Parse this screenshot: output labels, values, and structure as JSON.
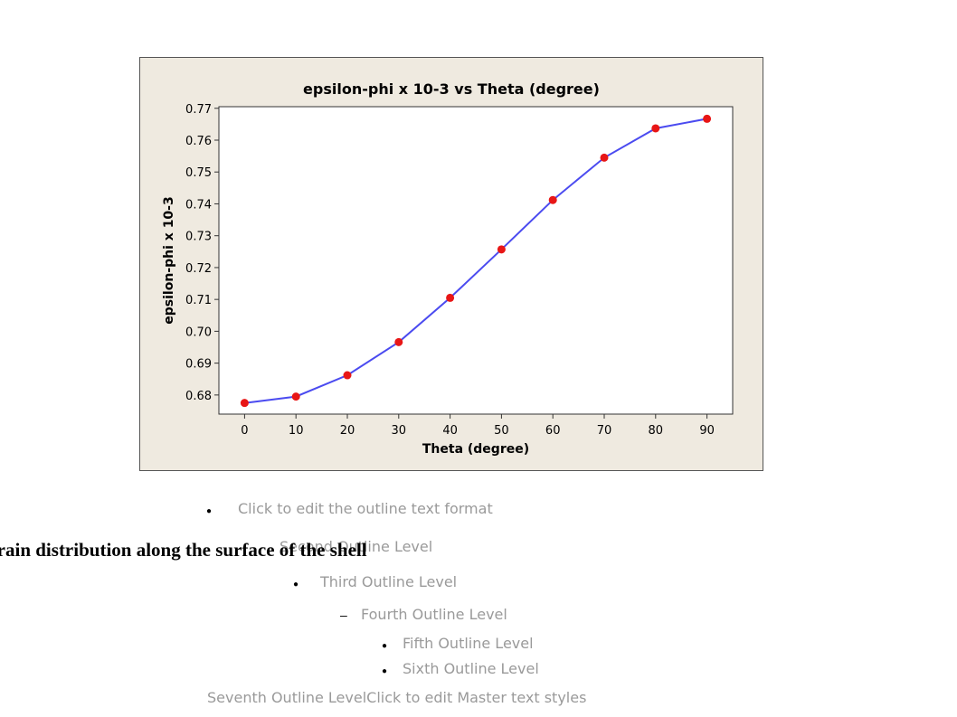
{
  "chart_data": {
    "type": "line",
    "title": "epsilon-phi x 10-3 vs Theta (degree)",
    "xlabel": "Theta (degree)",
    "ylabel": "epsilon-phi x 10-3",
    "x": [
      0,
      10,
      20,
      30,
      40,
      50,
      60,
      70,
      80,
      90
    ],
    "y": [
      0.6775,
      0.6795,
      0.6862,
      0.6966,
      0.7105,
      0.7257,
      0.7412,
      0.7545,
      0.7637,
      0.7667
    ],
    "xlim": [
      -5,
      95
    ],
    "ylim": [
      0.674,
      0.7705
    ],
    "xticks": [
      "0",
      "10",
      "20",
      "30",
      "40",
      "50",
      "60",
      "70",
      "80",
      "90"
    ],
    "yticks": [
      "0.68",
      "0.69",
      "0.70",
      "0.71",
      "0.72",
      "0.73",
      "0.74",
      "0.75",
      "0.76",
      "0.77"
    ],
    "grid": false,
    "legend": "none",
    "colors": {
      "line": "#4b4bf0",
      "marker": "#e81616",
      "frame": "#efeae0",
      "border": "#555555"
    }
  },
  "outline": {
    "level1": "Click to edit the outline text format",
    "level2": "Second Outline Level",
    "level3": "Third Outline Level",
    "level4": "Fourth Outline Level",
    "level5": "Fifth Outline Level",
    "level6": "Sixth Outline Level",
    "level7": "Seventh Outline LevelClick to edit Master text styles"
  },
  "caption": "Strain distribution along the surface of the shell"
}
